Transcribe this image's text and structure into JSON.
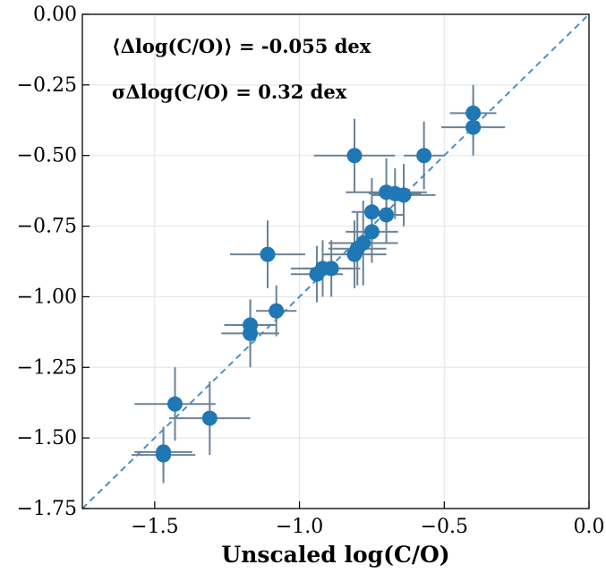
{
  "chart_data": {
    "type": "scatter",
    "xlabel": "Unscaled log(C/O)",
    "ylabel": "",
    "xlim": [
      -1.75,
      0.0
    ],
    "ylim": [
      -1.75,
      0.0
    ],
    "x_ticks": [
      -1.5,
      -1.0,
      -0.5,
      0.0
    ],
    "x_tick_labels": [
      "−1.5",
      "−1.0",
      "−0.5",
      "0.0"
    ],
    "y_ticks": [
      0.0,
      -0.25,
      -0.5,
      -0.75,
      -1.0,
      -1.25,
      -1.5,
      -1.75
    ],
    "y_tick_labels": [
      "0.00",
      "−0.25",
      "−0.50",
      "−0.75",
      "−1.00",
      "−1.25",
      "−1.50",
      "−1.75"
    ],
    "grid": true,
    "annotations": [
      {
        "text": "⟨Δlog(C/O)⟩ = -0.055 dex"
      },
      {
        "text": "σΔlog(C/O) = 0.32 dex"
      }
    ],
    "reference_line": {
      "style": "dashed",
      "description": "one-to-one",
      "color": "#4a90c2"
    },
    "colors": {
      "points": "#1f77b4",
      "errorbars": "#6b8297"
    },
    "points": [
      {
        "x": -0.4,
        "y": -0.35,
        "xerr": 0.08,
        "yerr": 0.1
      },
      {
        "x": -0.4,
        "y": -0.4,
        "xerr": 0.11,
        "yerr": 0.1
      },
      {
        "x": -0.57,
        "y": -0.5,
        "xerr": 0.07,
        "yerr": 0.12
      },
      {
        "x": -0.81,
        "y": -0.5,
        "xerr": 0.14,
        "yerr": 0.13
      },
      {
        "x": -0.7,
        "y": -0.63,
        "xerr": 0.14,
        "yerr": 0.12
      },
      {
        "x": -0.67,
        "y": -0.635,
        "xerr": 0.09,
        "yerr": 0.09
      },
      {
        "x": -0.64,
        "y": -0.64,
        "xerr": 0.11,
        "yerr": 0.11
      },
      {
        "x": -0.75,
        "y": -0.7,
        "xerr": 0.07,
        "yerr": 0.12
      },
      {
        "x": -0.7,
        "y": -0.71,
        "xerr": 0.06,
        "yerr": 0.1
      },
      {
        "x": -0.75,
        "y": -0.77,
        "xerr": 0.09,
        "yerr": 0.11
      },
      {
        "x": -0.78,
        "y": -0.81,
        "xerr": 0.12,
        "yerr": 0.15
      },
      {
        "x": -0.8,
        "y": -0.83,
        "xerr": 0.1,
        "yerr": 0.13
      },
      {
        "x": -0.81,
        "y": -0.85,
        "xerr": 0.11,
        "yerr": 0.12
      },
      {
        "x": -1.11,
        "y": -0.85,
        "xerr": 0.13,
        "yerr": 0.12
      },
      {
        "x": -0.92,
        "y": -0.9,
        "xerr": 0.11,
        "yerr": 0.1
      },
      {
        "x": -0.89,
        "y": -0.9,
        "xerr": 0.1,
        "yerr": 0.1
      },
      {
        "x": -0.94,
        "y": -0.92,
        "xerr": 0.09,
        "yerr": 0.1
      },
      {
        "x": -1.08,
        "y": -1.05,
        "xerr": 0.07,
        "yerr": 0.09
      },
      {
        "x": -1.17,
        "y": -1.1,
        "xerr": 0.09,
        "yerr": 0.09
      },
      {
        "x": -1.17,
        "y": -1.13,
        "xerr": 0.1,
        "yerr": 0.12
      },
      {
        "x": -1.43,
        "y": -1.38,
        "xerr": 0.14,
        "yerr": 0.13
      },
      {
        "x": -1.31,
        "y": -1.43,
        "xerr": 0.14,
        "yerr": 0.13
      },
      {
        "x": -1.47,
        "y": -1.55,
        "xerr": 0.1,
        "yerr": 0.08
      },
      {
        "x": -1.47,
        "y": -1.56,
        "xerr": 0.11,
        "yerr": 0.1
      }
    ]
  }
}
